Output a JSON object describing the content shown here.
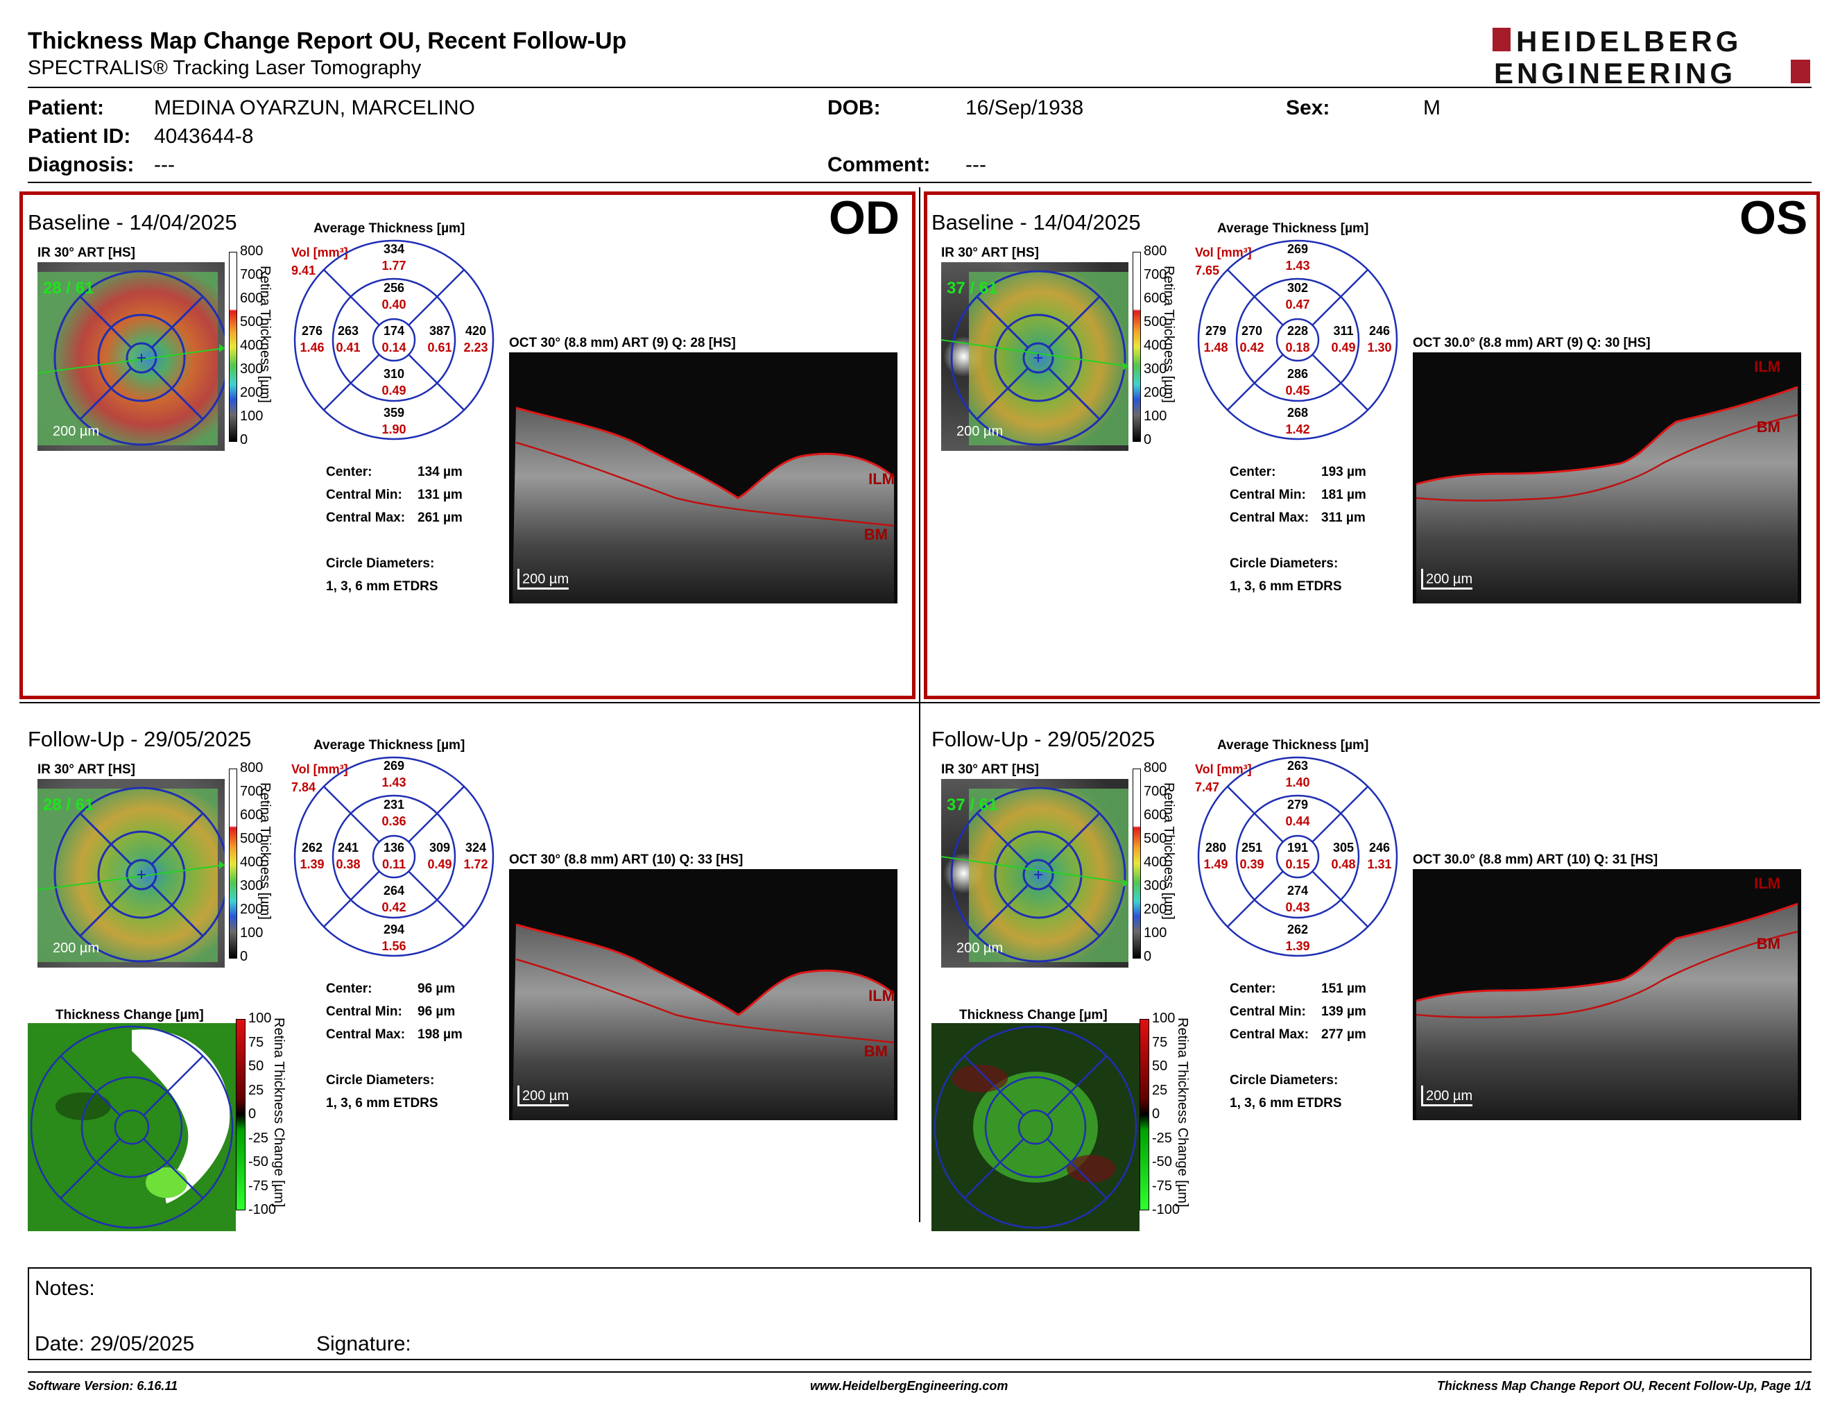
{
  "report": {
    "title": "Thickness Map Change Report OU, Recent Follow-Up",
    "subtitle": "SPECTRALIS® Tracking Laser Tomography",
    "brand_line1": "HEIDELBERG",
    "brand_line2": "ENGINEERING"
  },
  "patient": {
    "patient_label": "Patient:",
    "patient_name": "MEDINA OYARZUN, MARCELINO",
    "dob_label": "DOB:",
    "dob": "16/Sep/1938",
    "sex_label": "Sex:",
    "sex": "M",
    "id_label": "Patient ID:",
    "id": "4043644-8",
    "diagnosis_label": "Diagnosis:",
    "diagnosis": "---",
    "comment_label": "Comment:",
    "comment": "---"
  },
  "colorbar_ticks": [
    "800",
    "700",
    "600",
    "500",
    "400",
    "300",
    "200",
    "100",
    "0"
  ],
  "change_ticks": [
    "100",
    "75",
    "50",
    "25",
    "0",
    "-25",
    "-50",
    "-75",
    "-100"
  ],
  "common": {
    "avg_thickness_title": "Average Thickness [µm]",
    "vol_label": "Vol [mm³]",
    "ir_label": "IR 30° ART [HS]",
    "scale_200": "200 µm",
    "retina_axis": "Retina Thickness [µm]",
    "change_axis": "Retina Thickness Change [µm]",
    "thickness_change_title": "Thickness Change [µm]",
    "center_label": "Center:",
    "cmin_label": "Central Min:",
    "cmax_label": "Central Max:",
    "circ_label": "Circle Diameters:",
    "circ_value": "1, 3, 6 mm ETDRS",
    "ilm": "ILM",
    "bm": "BM"
  },
  "panels": {
    "od_base": {
      "eye": "OD",
      "heading": "Baseline - 14/04/2025",
      "quality": "28 / 61",
      "oct_label": "OCT 30° (8.8 mm) ART (9) Q: 28 [HS]",
      "vol": "9.41",
      "grid": {
        "sup_out": [
          "334",
          "1.77"
        ],
        "sup_in": [
          "256",
          "0.40"
        ],
        "temp_out": [
          "276",
          "1.46"
        ],
        "temp_in": [
          "263",
          "0.41"
        ],
        "center": [
          "174",
          "0.14"
        ],
        "nas_in": [
          "387",
          "0.61"
        ],
        "nas_out": [
          "420",
          "2.23"
        ],
        "inf_in": [
          "310",
          "0.49"
        ],
        "inf_out": [
          "359",
          "1.90"
        ]
      },
      "center": "134 µm",
      "cmin": "131 µm",
      "cmax": "261 µm"
    },
    "os_base": {
      "eye": "OS",
      "heading": "Baseline - 14/04/2025",
      "quality": "37 / 61",
      "oct_label": "OCT 30.0° (8.8 mm) ART (9) Q: 30 [HS]",
      "vol": "7.65",
      "grid": {
        "sup_out": [
          "269",
          "1.43"
        ],
        "sup_in": [
          "302",
          "0.47"
        ],
        "temp_out": [
          "279",
          "1.48"
        ],
        "temp_in": [
          "270",
          "0.42"
        ],
        "center": [
          "228",
          "0.18"
        ],
        "nas_in": [
          "311",
          "0.49"
        ],
        "nas_out": [
          "246",
          "1.30"
        ],
        "inf_in": [
          "286",
          "0.45"
        ],
        "inf_out": [
          "268",
          "1.42"
        ]
      },
      "center": "193 µm",
      "cmin": "181 µm",
      "cmax": "311 µm"
    },
    "od_fu": {
      "heading": "Follow-Up - 29/05/2025",
      "quality": "28 / 61",
      "oct_label": "OCT 30° (8.8 mm) ART (10) Q: 33 [HS]",
      "vol": "7.84",
      "grid": {
        "sup_out": [
          "269",
          "1.43"
        ],
        "sup_in": [
          "231",
          "0.36"
        ],
        "temp_out": [
          "262",
          "1.39"
        ],
        "temp_in": [
          "241",
          "0.38"
        ],
        "center": [
          "136",
          "0.11"
        ],
        "nas_in": [
          "309",
          "0.49"
        ],
        "nas_out": [
          "324",
          "1.72"
        ],
        "inf_in": [
          "264",
          "0.42"
        ],
        "inf_out": [
          "294",
          "1.56"
        ]
      },
      "center": "96 µm",
      "cmin": "96 µm",
      "cmax": "198 µm"
    },
    "os_fu": {
      "heading": "Follow-Up - 29/05/2025",
      "quality": "37 / 61",
      "oct_label": "OCT 30.0° (8.8 mm) ART (10) Q: 31 [HS]",
      "vol": "7.47",
      "grid": {
        "sup_out": [
          "263",
          "1.40"
        ],
        "sup_in": [
          "279",
          "0.44"
        ],
        "temp_out": [
          "280",
          "1.49"
        ],
        "temp_in": [
          "251",
          "0.39"
        ],
        "center": [
          "191",
          "0.15"
        ],
        "nas_in": [
          "305",
          "0.48"
        ],
        "nas_out": [
          "246",
          "1.31"
        ],
        "inf_in": [
          "274",
          "0.43"
        ],
        "inf_out": [
          "262",
          "1.39"
        ]
      },
      "center": "151 µm",
      "cmin": "139 µm",
      "cmax": "277 µm"
    }
  },
  "notes": {
    "notes_label": "Notes:",
    "date_label": "Date: 29/05/2025",
    "signature_label": "Signature:"
  },
  "footer": {
    "software": "Software Version: 6.16.11",
    "website": "www.HeidelbergEngineering.com",
    "page": "Thickness Map Change Report OU, Recent Follow-Up, Page 1/1"
  }
}
